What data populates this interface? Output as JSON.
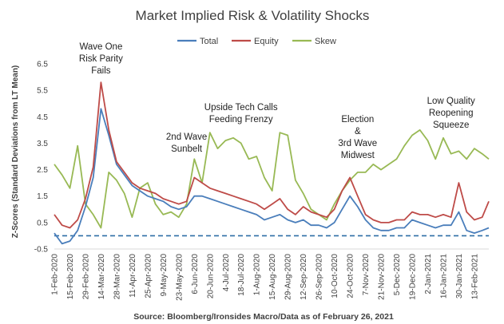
{
  "chart_data": {
    "type": "line",
    "title": "Market Implied Risk & Volatility Shocks",
    "ylabel": "Z-Scores (Standard Deviations from LT Mean)",
    "xlabel": "",
    "source": "Source: Bloomberg/Ironsides Macro/Data as of February 26, 2021",
    "ylim": [
      -0.5,
      6.5
    ],
    "yticks": [
      "6.5",
      "5.5",
      "4.5",
      "3.5",
      "2.5",
      "1.5",
      "0.5",
      "-0.5"
    ],
    "ytick_values": [
      6.5,
      5.5,
      4.5,
      3.5,
      2.5,
      1.5,
      0.5,
      -0.5
    ],
    "xticks": [
      "1-Feb-2020",
      "15-Feb-2020",
      "29-Feb-2020",
      "14-Mar-2020",
      "28-Mar-2020",
      "11-Apr-2020",
      "25-Apr-2020",
      "9-May-2020",
      "23-May-2020",
      "6-Jun-2020",
      "20-Jun-2020",
      "4-Jul-2020",
      "18-Jul-2020",
      "1-Aug-2020",
      "15-Aug-2020",
      "29-Aug-2020",
      "12-Sep-2020",
      "26-Sep-2020",
      "10-Oct-2020",
      "24-Oct-2020",
      "7-Nov-2020",
      "21-Nov-2020",
      "5-Dec-2020",
      "19-Dec-2020",
      "2-Jan-2021",
      "16-Jan-2021",
      "30-Jan-2021",
      "13-Feb-2021"
    ],
    "x": [
      "1-Feb-2020",
      "8-Feb-2020",
      "15-Feb-2020",
      "22-Feb-2020",
      "29-Feb-2020",
      "7-Mar-2020",
      "14-Mar-2020",
      "21-Mar-2020",
      "28-Mar-2020",
      "4-Apr-2020",
      "11-Apr-2020",
      "18-Apr-2020",
      "25-Apr-2020",
      "2-May-2020",
      "9-May-2020",
      "16-May-2020",
      "23-May-2020",
      "30-May-2020",
      "6-Jun-2020",
      "13-Jun-2020",
      "20-Jun-2020",
      "27-Jun-2020",
      "4-Jul-2020",
      "11-Jul-2020",
      "18-Jul-2020",
      "25-Jul-2020",
      "1-Aug-2020",
      "8-Aug-2020",
      "15-Aug-2020",
      "22-Aug-2020",
      "29-Aug-2020",
      "5-Sep-2020",
      "12-Sep-2020",
      "19-Sep-2020",
      "26-Sep-2020",
      "3-Oct-2020",
      "10-Oct-2020",
      "17-Oct-2020",
      "24-Oct-2020",
      "31-Oct-2020",
      "7-Nov-2020",
      "14-Nov-2020",
      "21-Nov-2020",
      "28-Nov-2020",
      "5-Dec-2020",
      "12-Dec-2020",
      "19-Dec-2020",
      "26-Dec-2020",
      "2-Jan-2021",
      "9-Jan-2021",
      "16-Jan-2021",
      "23-Jan-2021",
      "30-Jan-2021",
      "6-Feb-2021",
      "13-Feb-2021",
      "20-Feb-2021",
      "26-Feb-2021"
    ],
    "series": [
      {
        "name": "Total",
        "color": "#4a7ebb",
        "values": [
          0.1,
          -0.3,
          -0.2,
          0.2,
          1.1,
          2.2,
          4.8,
          3.8,
          2.7,
          2.3,
          1.9,
          1.7,
          1.5,
          1.4,
          1.3,
          1.1,
          1.0,
          1.1,
          1.5,
          1.5,
          1.4,
          1.3,
          1.2,
          1.1,
          1.0,
          0.9,
          0.8,
          0.6,
          0.7,
          0.8,
          0.6,
          0.5,
          0.6,
          0.4,
          0.4,
          0.3,
          0.5,
          1.0,
          1.5,
          1.1,
          0.6,
          0.3,
          0.2,
          0.2,
          0.3,
          0.3,
          0.6,
          0.5,
          0.4,
          0.3,
          0.4,
          0.4,
          0.9,
          0.2,
          0.1,
          0.2,
          0.3
        ]
      },
      {
        "name": "Equity",
        "color": "#be4b48",
        "values": [
          0.8,
          0.4,
          0.3,
          0.6,
          1.4,
          2.6,
          5.8,
          4.0,
          2.8,
          2.4,
          2.0,
          1.8,
          1.7,
          1.6,
          1.4,
          1.3,
          1.2,
          1.3,
          2.2,
          2.0,
          1.8,
          1.7,
          1.6,
          1.5,
          1.4,
          1.3,
          1.2,
          1.0,
          1.2,
          1.4,
          1.0,
          0.8,
          1.1,
          0.9,
          0.8,
          0.7,
          1.0,
          1.7,
          2.2,
          1.5,
          0.8,
          0.6,
          0.5,
          0.5,
          0.6,
          0.6,
          0.9,
          0.8,
          0.8,
          0.7,
          0.8,
          0.7,
          2.0,
          0.9,
          0.6,
          0.7,
          1.3
        ]
      },
      {
        "name": "Skew",
        "color": "#98b954",
        "values": [
          2.7,
          2.3,
          1.8,
          3.4,
          1.2,
          0.8,
          0.3,
          2.4,
          2.1,
          1.6,
          0.7,
          1.8,
          2.0,
          1.2,
          0.8,
          0.9,
          0.7,
          1.2,
          2.9,
          2.0,
          3.9,
          3.3,
          3.6,
          3.7,
          3.5,
          2.9,
          3.0,
          2.2,
          1.7,
          3.9,
          3.8,
          2.1,
          1.6,
          1.0,
          0.8,
          0.6,
          1.2,
          1.7,
          2.1,
          2.4,
          2.4,
          2.7,
          2.5,
          2.7,
          2.9,
          3.4,
          3.8,
          4.0,
          3.6,
          2.9,
          3.7,
          3.1,
          3.2,
          2.9,
          3.3,
          3.1,
          2.9
        ]
      }
    ],
    "baseline": {
      "value": 0,
      "color": "#2e6ea6",
      "style": "dashed"
    },
    "legend": {
      "position": "top-center",
      "entries": [
        "Total",
        "Equity",
        "Skew"
      ]
    },
    "grid": false,
    "annotations": [
      {
        "lines": [
          "Wave  One",
          "Risk Parity",
          "Fails"
        ],
        "at": "14-Mar-2020"
      },
      {
        "lines": [
          "2nd Wave",
          "Sunbelt"
        ],
        "at": "30-May-2020"
      },
      {
        "lines": [
          "Upside Tech Calls",
          "Feeding Frenzy"
        ],
        "at": "18-Jul-2020"
      },
      {
        "lines": [
          "Election",
          "&",
          "3rd Wave",
          "Midwest"
        ],
        "at": "31-Oct-2020"
      },
      {
        "lines": [
          "Low Quality",
          "Reopening",
          "Squeeze"
        ],
        "at": "23-Jan-2021"
      }
    ]
  }
}
